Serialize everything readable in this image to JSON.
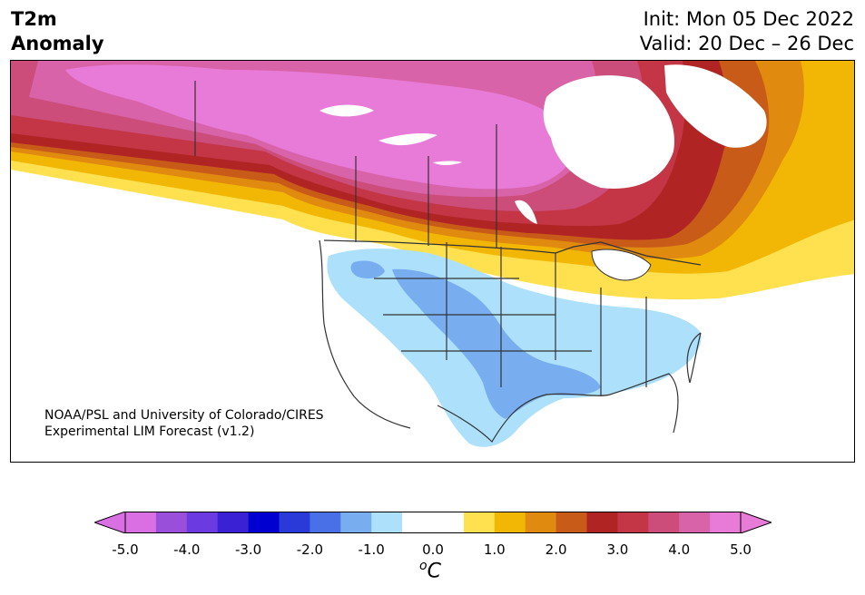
{
  "title": {
    "left_line1": "T2m",
    "left_line2": "Anomaly",
    "init": "Init: Mon 05 Dec 2022",
    "valid": "Valid: 20 Dec – 26 Dec"
  },
  "credit": {
    "line1": "NOAA/PSL and University of Colorado/CIRES",
    "line2": "Experimental LIM Forecast (v1.2)"
  },
  "colorbar": {
    "colors": [
      "#d96fe3",
      "#9a4fdb",
      "#6b3ae0",
      "#3a22d4",
      "#0000d0",
      "#2a3ad8",
      "#4a70e8",
      "#78aef0",
      "#ade0fb",
      "#ffffff",
      "#ffffff",
      "#ffe150",
      "#f2b705",
      "#e08a10",
      "#c95b18",
      "#b02424",
      "#c43545",
      "#cc4d7a",
      "#d963a8",
      "#e87ad8"
    ],
    "ticks": [
      "-5.0",
      "-4.0",
      "-3.0",
      "-2.0",
      "-1.0",
      "0.0",
      "1.0",
      "2.0",
      "3.0",
      "4.0",
      "5.0"
    ],
    "unit": "C",
    "unit_sup": "o"
  },
  "anomaly_palette": {
    "p5": "#e87ad8",
    "p45": "#d963a8",
    "p4": "#cc4d7a",
    "p35": "#c43545",
    "p3": "#b02424",
    "p25": "#c95b18",
    "p2": "#e08a10",
    "p15": "#f2b705",
    "p1": "#ffe150",
    "n1": "#ade0fb",
    "n15": "#78aef0"
  }
}
